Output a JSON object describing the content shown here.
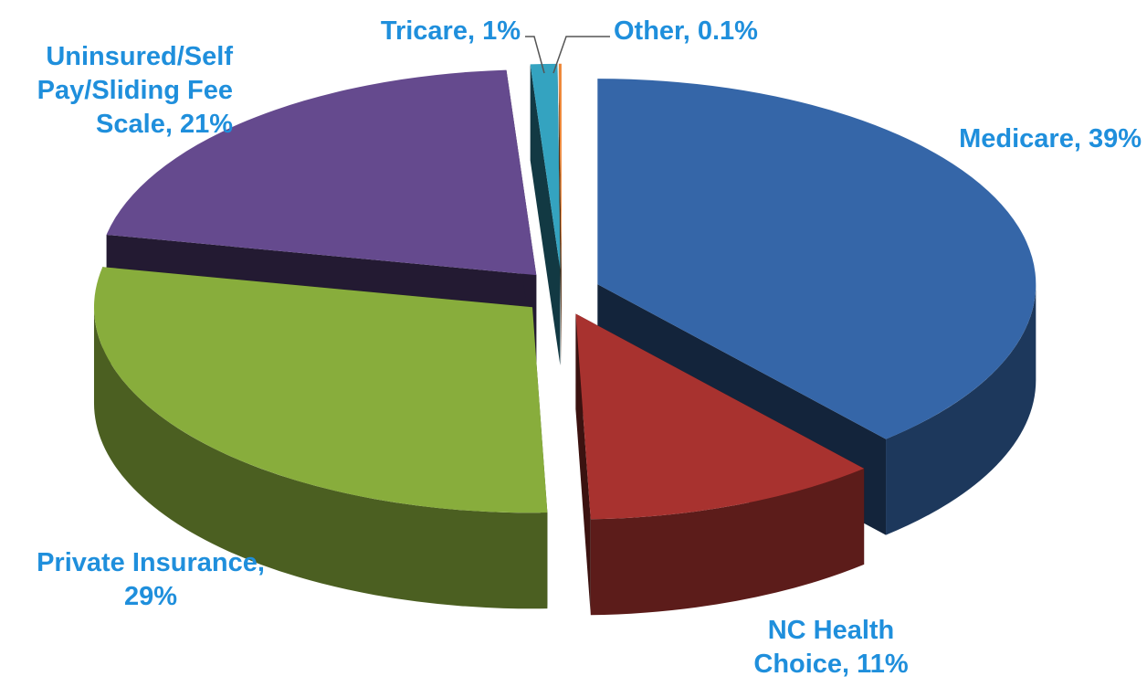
{
  "chart_data": {
    "type": "pie",
    "values": [
      39,
      11,
      29,
      21,
      1,
      0.1
    ],
    "value_labels": [
      "Medicare, 39%",
      "NC Health Choice, 11%",
      "Private Insurance, 29%",
      "Uninsured/Self Pay/Sliding Fee Scale, 21%",
      "Tricare, 1%",
      "Other, 0.1%"
    ],
    "colors": [
      "#3566a8",
      "#a8322f",
      "#88ad3c",
      "#654a8e",
      "#34a3c0",
      "#ee8433"
    ]
  }
}
